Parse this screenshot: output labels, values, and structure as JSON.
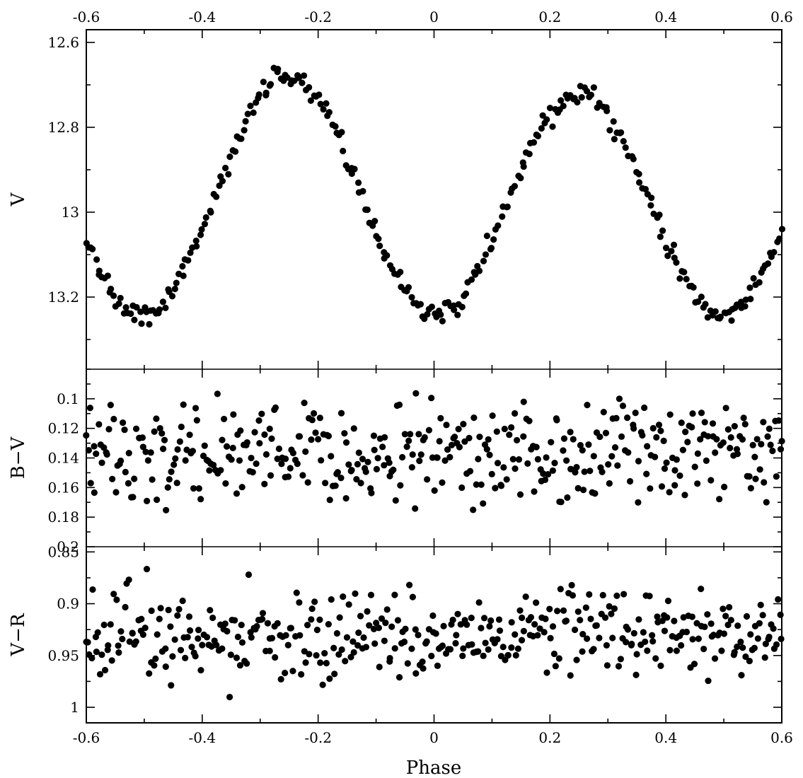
{
  "chart_data": {
    "type": "scatter",
    "xlabel": "Phase",
    "xlim": [
      -0.6,
      0.6
    ],
    "x_ticks": [
      -0.6,
      -0.4,
      -0.2,
      0,
      0.2,
      0.4,
      0.6
    ],
    "x_tick_labels": [
      "-0.6",
      "-0.4",
      "-0.2",
      "0",
      "0.2",
      "0.4",
      "0.6"
    ],
    "panels": [
      {
        "id": "V",
        "ylabel": "V",
        "ylim": [
          12.57,
          13.37
        ],
        "inverted": true,
        "y_ticks": [
          12.6,
          12.8,
          13,
          13.2
        ],
        "y_tick_labels": [
          "12.6",
          "12.8",
          "13",
          "13.2"
        ],
        "model": "lightcurve",
        "scatter": 0.012,
        "point_spacing": 0.004
      },
      {
        "id": "BV",
        "ylabel": "B−V",
        "ylim": [
          0.08,
          0.2
        ],
        "inverted": true,
        "y_ticks": [
          0.1,
          0.12,
          0.14,
          0.16,
          0.18,
          0.2
        ],
        "y_tick_labels": [
          "0.1",
          "0.12",
          "0.14",
          "0.16",
          "0.18",
          "0.2"
        ],
        "model": "flat",
        "base": 0.138,
        "scatter": 0.016,
        "point_spacing": 0.003
      },
      {
        "id": "VR",
        "ylabel": "V−R",
        "ylim": [
          0.845,
          1.015
        ],
        "inverted": true,
        "y_ticks": [
          0.85,
          0.9,
          0.95,
          1
        ],
        "y_tick_labels": [
          "0.85",
          "0.9",
          "0.95",
          "1"
        ],
        "model": "flat",
        "base": 0.93,
        "scatter": 0.022,
        "point_spacing": 0.003
      }
    ]
  }
}
